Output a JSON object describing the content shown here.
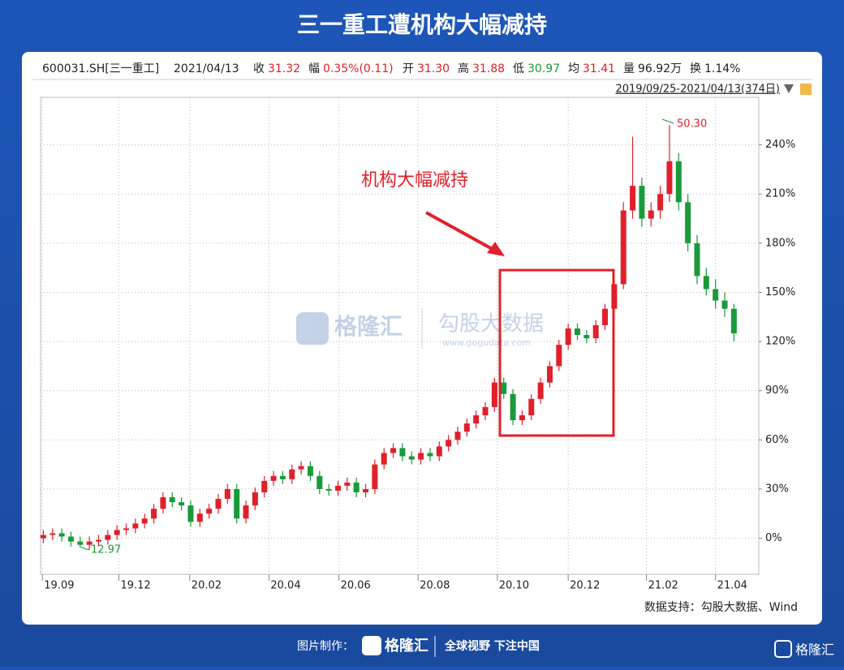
{
  "chart_data": {
    "type": "candlestick",
    "title": "三一重工遭机构大幅减持",
    "info": [
      {
        "label": "600031.SH[三一重工]",
        "color": "#222"
      },
      {
        "label": "2021/04/13",
        "color": "#222"
      },
      {
        "label": "收",
        "value": "31.32",
        "color": "#e0202a"
      },
      {
        "label": "幅",
        "value": "0.35%(0.11)",
        "color": "#e0202a"
      },
      {
        "label": "开",
        "value": "31.30",
        "color": "#e0202a"
      },
      {
        "label": "高",
        "value": "31.88",
        "color": "#e0202a"
      },
      {
        "label": "低",
        "value": "30.97",
        "color": "#1a9a3a"
      },
      {
        "label": "均",
        "value": "31.41",
        "color": "#e0202a"
      },
      {
        "label": "量",
        "value": "96.92万",
        "color": "#222"
      },
      {
        "label": "换",
        "value": "1.14%",
        "color": "#222"
      }
    ],
    "range_label": "2019/09/25-2021/04/13(374日)",
    "annotation": "机构大幅减持",
    "high_label": "50.30",
    "low_label": "12.97",
    "source": "数据支持：勾股大数据、Wind",
    "watermark": [
      "格隆汇",
      "勾股大数据",
      "www.gogudata.com"
    ],
    "footer": [
      "图片制作：",
      "格隆汇",
      "全球视野 下注中国"
    ],
    "up_color": "#e0202a",
    "down_color": "#1a9a3a",
    "grid": true,
    "xlim": [
      -0.3,
      77.7
    ],
    "xticks": [
      {
        "value": -0.1,
        "label": "19.09"
      },
      {
        "value": 8.2,
        "label": "19.12"
      },
      {
        "value": 15.9,
        "label": "20.02"
      },
      {
        "value": 24.5,
        "label": "20.04"
      },
      {
        "value": 32.1,
        "label": "20.06"
      },
      {
        "value": 40.7,
        "label": "20.08"
      },
      {
        "value": 49.3,
        "label": "20.10"
      },
      {
        "value": 57,
        "label": "20.12"
      },
      {
        "value": 65.5,
        "label": "21.02"
      },
      {
        "value": 73,
        "label": "21.04"
      }
    ],
    "ylim": [
      -22,
      269
    ],
    "yticks": [
      {
        "value": 0,
        "label": "0%"
      },
      {
        "value": 30,
        "label": "30%"
      },
      {
        "value": 60,
        "label": "60%"
      },
      {
        "value": 90,
        "label": "90%"
      },
      {
        "value": 120,
        "label": "120%"
      },
      {
        "value": 150,
        "label": "150%"
      },
      {
        "value": 180,
        "label": "180%"
      },
      {
        "value": 210,
        "label": "210%"
      },
      {
        "value": 240,
        "label": "240%"
      }
    ],
    "open": [
      0,
      2,
      3,
      1,
      -2,
      -4,
      -2,
      -1,
      2,
      5,
      6,
      9,
      12,
      18,
      25,
      22,
      20,
      10,
      15,
      18,
      24,
      30,
      12,
      20,
      28,
      35,
      38,
      36,
      42,
      44,
      38,
      30,
      29,
      32,
      34,
      28,
      30,
      45,
      52,
      55,
      50,
      48,
      52,
      50,
      56,
      60,
      65,
      70,
      75,
      80,
      95,
      88,
      72,
      75,
      85,
      95,
      105,
      118,
      128,
      124,
      122,
      130,
      140,
      155,
      200,
      215,
      195,
      200,
      210,
      230,
      205,
      180,
      160,
      152,
      145,
      140
    ],
    "close": [
      2,
      3,
      1,
      -2,
      -4,
      -2,
      -1,
      2,
      5,
      6,
      9,
      12,
      18,
      25,
      22,
      20,
      10,
      15,
      18,
      24,
      30,
      12,
      20,
      28,
      35,
      38,
      36,
      42,
      44,
      38,
      30,
      29,
      32,
      34,
      28,
      30,
      45,
      52,
      55,
      50,
      48,
      52,
      50,
      56,
      60,
      65,
      70,
      75,
      80,
      95,
      88,
      72,
      75,
      85,
      95,
      105,
      118,
      128,
      124,
      122,
      130,
      140,
      155,
      200,
      215,
      195,
      200,
      210,
      230,
      205,
      180,
      160,
      152,
      145,
      140,
      125
    ],
    "high": [
      5,
      6,
      6,
      4,
      1,
      1,
      2,
      5,
      8,
      9,
      12,
      15,
      21,
      28,
      28,
      25,
      23,
      18,
      21,
      27,
      33,
      33,
      23,
      31,
      38,
      41,
      41,
      45,
      47,
      47,
      41,
      33,
      35,
      37,
      37,
      33,
      48,
      55,
      58,
      58,
      53,
      55,
      55,
      59,
      63,
      68,
      73,
      78,
      83,
      98,
      98,
      91,
      78,
      88,
      98,
      108,
      121,
      131,
      131,
      127,
      133,
      143,
      158,
      205,
      245,
      220,
      205,
      215,
      252,
      235,
      210,
      185,
      165,
      158,
      150,
      143
    ],
    "low": [
      -3,
      -1,
      -2,
      -5,
      -5,
      -7,
      -5,
      -4,
      -1,
      2,
      3,
      6,
      9,
      15,
      19,
      17,
      7,
      7,
      12,
      15,
      21,
      9,
      9,
      17,
      25,
      32,
      33,
      33,
      39,
      35,
      27,
      26,
      26,
      29,
      25,
      25,
      27,
      42,
      49,
      47,
      45,
      45,
      47,
      47,
      53,
      57,
      62,
      67,
      72,
      77,
      85,
      69,
      69,
      72,
      82,
      92,
      102,
      115,
      121,
      119,
      119,
      127,
      137,
      152,
      195,
      190,
      190,
      195,
      205,
      200,
      175,
      155,
      148,
      140,
      135,
      120
    ]
  }
}
